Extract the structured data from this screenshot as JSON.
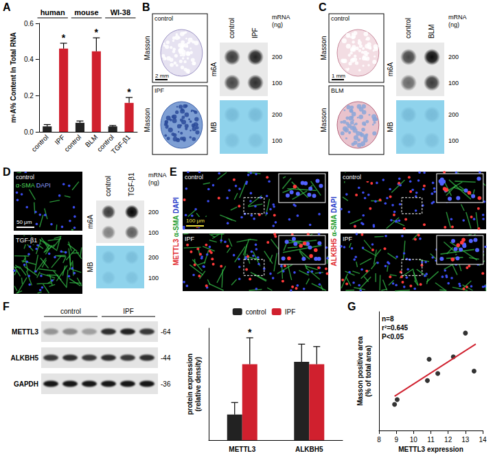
{
  "chart_data": [
    {
      "panel": "A",
      "type": "bar",
      "group_labels": [
        "human",
        "mouse",
        "WI-38"
      ],
      "categories": [
        "control",
        "IPF",
        "control",
        "BLM",
        "control",
        "TGF-β1"
      ],
      "values": [
        0.03,
        0.46,
        0.05,
        0.445,
        0.03,
        0.16
      ],
      "errors": [
        0.01,
        0.03,
        0.01,
        0.075,
        0.005,
        0.03
      ],
      "significance": [
        null,
        "*",
        null,
        "*",
        null,
        "*"
      ],
      "colors": [
        "#222222",
        "#d0202e",
        "#222222",
        "#d0202e",
        "#222222",
        "#d0202e"
      ],
      "ylabel": "m⁶A% Content In Total RNA",
      "ylim": [
        0,
        0.6
      ],
      "yticks": [
        {
          "value": 0,
          "label": "0.0"
        },
        {
          "value": 0.2,
          "label": "0.2"
        },
        {
          "value": 0.4,
          "label": "0.4"
        },
        {
          "value": 0.6,
          "label": "0.6"
        }
      ]
    },
    {
      "type": "bar",
      "categories": [
        "METTL3",
        "ALKBH5"
      ],
      "series": [
        {
          "name": "control",
          "color": "#222222",
          "values": [
            0.32,
            0.98
          ],
          "errors": [
            0.15,
            0.22
          ]
        },
        {
          "name": "IPF",
          "color": "#d0202e",
          "values": [
            0.95,
            0.95
          ],
          "errors": [
            0.33,
            0.22
          ],
          "significance": [
            "*",
            null
          ]
        }
      ],
      "ylabel": "protein expression (relative density)",
      "ylim": [
        0,
        1.4
      ],
      "tick_labels": "x",
      "legend": "top"
    },
    {
      "panel": "G",
      "type": "scatter",
      "x": [
        8.9,
        9.05,
        10.8,
        10.9,
        11.4,
        12.3,
        13.0,
        13.5
      ],
      "values": [
        20.5,
        21.5,
        25.5,
        30,
        27,
        30.5,
        35.5,
        27.5
      ],
      "color": "#000000",
      "marker": "circle",
      "fit_line": {
        "x": [
          8.9,
          13.6
        ],
        "y": [
          22.2,
          33.2
        ],
        "color": "#d0202e"
      },
      "annotations": [
        "n=8",
        "r²=0.645",
        "P<0.05"
      ],
      "xlabel": "METTL3 expression",
      "ylabel": "Masson positive area (% of total area)",
      "xlim": [
        8,
        14
      ],
      "xticks": [
        8,
        9,
        10,
        11,
        12,
        13,
        14
      ],
      "ylim": [
        15,
        40
      ],
      "tick_labels": "x"
    }
  ],
  "panels": {
    "B": {
      "masson": {
        "label": "Masson",
        "images": [
          "control",
          "IPF"
        ],
        "scale_bar": "2 mm"
      },
      "dot_blot": {
        "columns": [
          "control",
          "IPF"
        ],
        "rows": [
          "m6A",
          "MB"
        ],
        "amount_label": "mRNA (ng)",
        "amounts": [
          200,
          100
        ],
        "intensity": [
          [
            [
              0.75,
              0.85
            ],
            [
              0.7,
              0.8
            ]
          ],
          [
            [
              0.2,
              0.2
            ],
            [
              0.15,
              0.15
            ]
          ]
        ]
      }
    },
    "C": {
      "masson": {
        "label": "Masson",
        "images": [
          "control",
          "BLM"
        ],
        "scale_bar": "1 mm"
      },
      "dot_blot": {
        "columns": [
          "control",
          "BLM"
        ],
        "rows": [
          "m6A",
          "MB"
        ],
        "amount_label": "mRNA (ng)",
        "amounts": [
          200,
          100
        ],
        "intensity": [
          [
            [
              0.7,
              0.95
            ],
            [
              0.55,
              0.75
            ]
          ],
          [
            [
              0.2,
              0.2
            ],
            [
              0.15,
              0.15
            ]
          ]
        ]
      }
    },
    "D": {
      "images": {
        "labels": [
          "control",
          "TGF-β1"
        ],
        "stain": [
          "α-SMA",
          "DAPI"
        ],
        "scale_bar": "50 μm"
      },
      "dot_blot": {
        "columns": [
          "control",
          "TGF-β1"
        ],
        "rows": [
          "m6A",
          "MB"
        ],
        "amount_label": "mRNA (ng)",
        "amounts": [
          200,
          100
        ],
        "intensity": [
          [
            [
              0.75,
              0.98
            ],
            [
              0.45,
              0.6
            ]
          ],
          [
            [
              0.18,
              0.18
            ],
            [
              0.14,
              0.14
            ]
          ]
        ]
      }
    },
    "E": {
      "groups": [
        {
          "stain": [
            "METTL3",
            "α-SMA",
            "DAPI"
          ],
          "images": [
            "control",
            "IPF"
          ]
        },
        {
          "stain": [
            "ALKBH5",
            "α-SMA",
            "DAPI"
          ],
          "images": [
            "control",
            "IPF"
          ]
        }
      ],
      "scale_bar": "100 μm"
    },
    "F": {
      "western_blot": {
        "groups": [
          "control",
          "IPF"
        ],
        "rows": [
          {
            "name": "METTL3",
            "kda": "-64",
            "bands": [
              0.35,
              0.4,
              0.3,
              0.8,
              0.85,
              0.75
            ]
          },
          {
            "name": "ALKBH5",
            "kda": "-44",
            "bands": [
              0.75,
              0.8,
              0.75,
              0.8,
              0.75,
              0.8
            ]
          },
          {
            "name": "GAPDH",
            "kda": "-36",
            "bands": [
              0.9,
              0.9,
              0.9,
              0.9,
              0.9,
              0.9
            ]
          }
        ]
      }
    }
  }
}
